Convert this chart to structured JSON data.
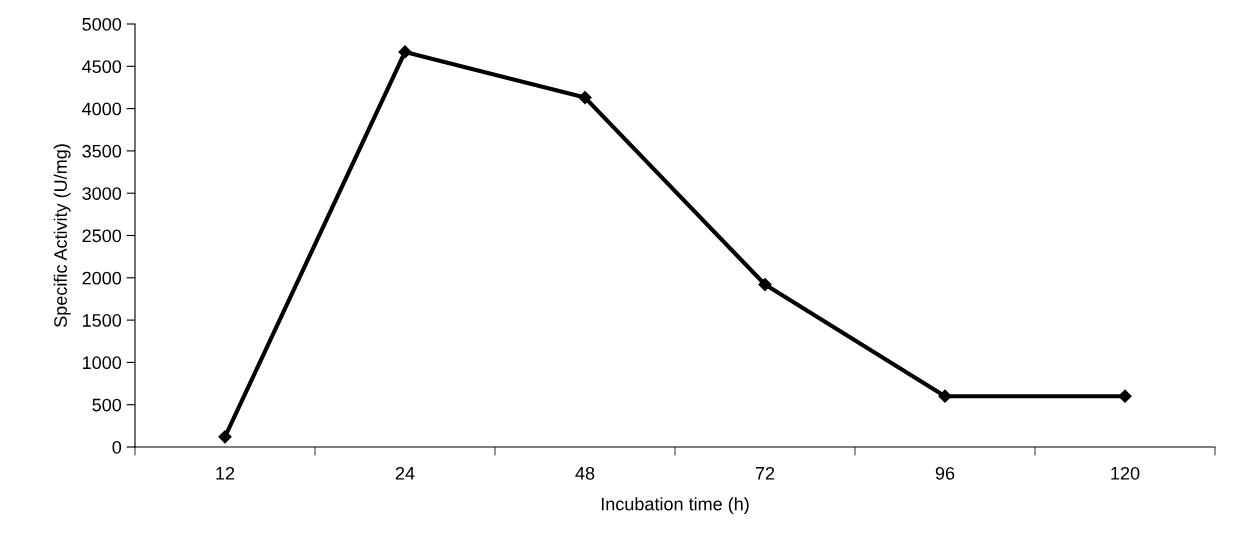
{
  "chart_data": {
    "type": "line",
    "xlabel": "Incubation time (h)",
    "ylabel": "Specific Activity (U/mg)",
    "categories": [
      "12",
      "24",
      "48",
      "72",
      "96",
      "120"
    ],
    "series": [
      {
        "color": "#000000",
        "values": [
          120,
          4670,
          4130,
          1920,
          600,
          600
        ]
      }
    ],
    "ylim": [
      0,
      5000
    ],
    "yticks": [
      0,
      500,
      1000,
      1500,
      2000,
      2500,
      3000,
      3500,
      4000,
      4500,
      5000
    ],
    "marker": "diamond",
    "line_style": "solid",
    "grid": false,
    "legend": false
  }
}
